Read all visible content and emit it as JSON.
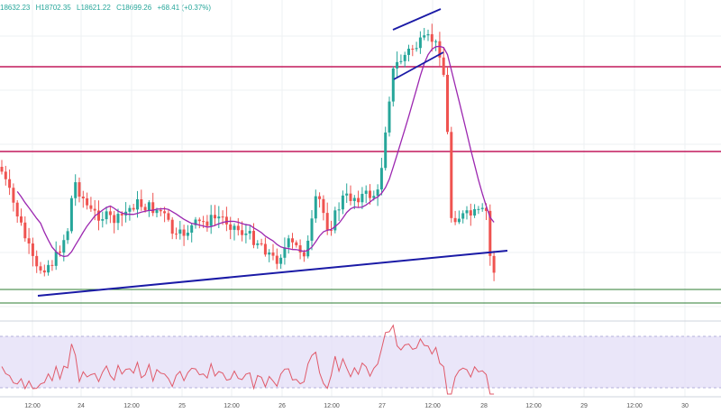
{
  "legend": {
    "open": "18632.23",
    "high": "H18702.35",
    "low": "L18621.22",
    "close": "C18699.26",
    "change": "+68.41 (+0.37%)"
  },
  "colors": {
    "up": "#26a69a",
    "down": "#ef5350",
    "ma": "#9c27b0",
    "resistance": "#c2185b",
    "trendline": "#1a1aa6",
    "support": "#2e7d32",
    "rsi_line": "#e05a6a",
    "rsi_band": "#e1dcf7",
    "grid": "#eef0f3"
  },
  "x_axis": {
    "ticks": [
      "12:00",
      "24",
      "12:00",
      "25",
      "12:00",
      "26",
      "12:00",
      "27",
      "12:00",
      "28",
      "12:00",
      "29",
      "12:00",
      "30"
    ]
  },
  "chart_data": {
    "type": "candlestick",
    "indicators": [
      "moving-average",
      "rsi"
    ],
    "price_scale": {
      "visible_range_approx": [
        18300,
        19400
      ]
    },
    "ohlc_last": {
      "open": 18632.23,
      "high": 18702.35,
      "low": 18621.22,
      "close": 18699.26,
      "change": 68.41,
      "change_pct": 0.37
    },
    "candle_trend": [
      {
        "day": "23",
        "close_approx": 18900
      },
      {
        "day": "24",
        "close_approx": 18860
      },
      {
        "day": "25",
        "close_approx": 18820
      },
      {
        "day": "26",
        "close_approx": 18850
      },
      {
        "day": "27",
        "close_approx": 19350
      },
      {
        "day": "28",
        "close_approx": 18700
      }
    ],
    "horizontal_levels": [
      "resistance",
      "resistance",
      "support",
      "support"
    ],
    "trendline": "ascending support",
    "pattern": "bear flag channel near highs",
    "rsi_range": [
      0,
      100
    ],
    "rsi_band": [
      30,
      70
    ]
  }
}
